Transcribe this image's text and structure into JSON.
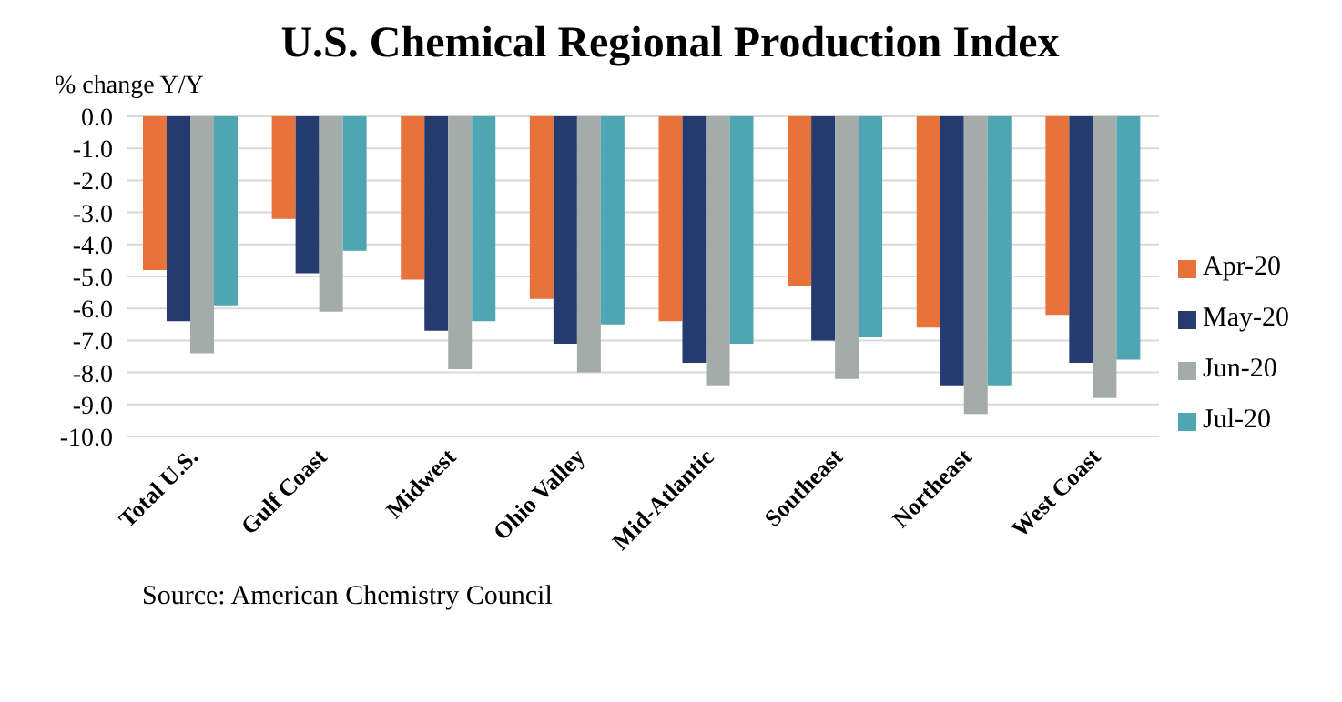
{
  "chart_data": {
    "type": "bar",
    "title": "U.S. Chemical Regional Production Index",
    "ylabel": "% change Y/Y",
    "categories": [
      "Total U.S.",
      "Gulf Coast",
      "Midwest",
      "Ohio Valley",
      "Mid-Atlantic",
      "Southeast",
      "Northeast",
      "West Coast"
    ],
    "series": [
      {
        "name": "Apr-20",
        "color": "#e8733a",
        "values": [
          -4.8,
          -3.2,
          -5.1,
          -5.7,
          -6.4,
          -5.3,
          -6.6,
          -6.2
        ]
      },
      {
        "name": "May-20",
        "color": "#253a6e",
        "values": [
          -6.4,
          -4.9,
          -6.7,
          -7.1,
          -7.7,
          -7.0,
          -8.4,
          -7.7
        ]
      },
      {
        "name": "Jun-20",
        "color": "#a3aca9",
        "values": [
          -7.4,
          -6.1,
          -7.9,
          -8.0,
          -8.4,
          -8.2,
          -9.3,
          -8.8
        ]
      },
      {
        "name": "Jul-20",
        "color": "#4ea6b3",
        "values": [
          -5.9,
          -4.2,
          -6.4,
          -6.5,
          -7.1,
          -6.9,
          -8.4,
          -7.6
        ]
      }
    ],
    "ylim": [
      -10,
      0
    ],
    "yticks": [
      {
        "value": 0,
        "label": "0.0"
      },
      {
        "value": -1,
        "label": "-1.0"
      },
      {
        "value": -2,
        "label": "-2.0"
      },
      {
        "value": -3,
        "label": "-3.0"
      },
      {
        "value": -4,
        "label": "-4.0"
      },
      {
        "value": -5,
        "label": "-5.0"
      },
      {
        "value": -6,
        "label": "-6.0"
      },
      {
        "value": -7,
        "label": "-7.0"
      },
      {
        "value": -8,
        "label": "-8.0"
      },
      {
        "value": -9,
        "label": "-9.0"
      },
      {
        "value": -10,
        "label": "-10.0"
      }
    ],
    "grid": "y",
    "legend": "right",
    "annotations": [
      "Source: American Chemistry Council"
    ]
  }
}
